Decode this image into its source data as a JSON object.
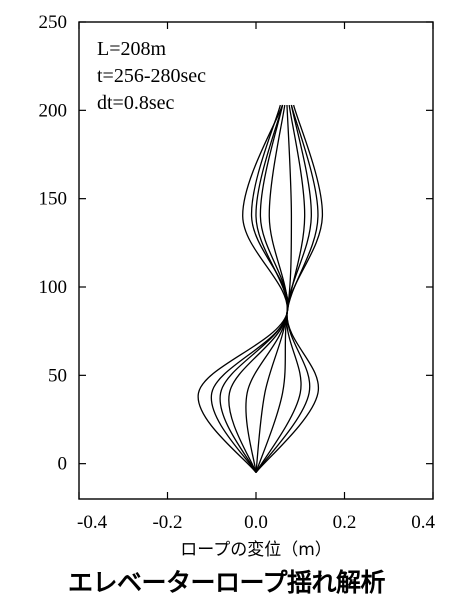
{
  "chart_data": {
    "type": "line",
    "annotations": [
      "L=208m",
      "t=256-280sec",
      "dt=0.8sec"
    ],
    "xlabel": "ロープの変位（m）",
    "ylabel": "",
    "xlim": [
      -0.4,
      0.4
    ],
    "ylim": [
      -20,
      250
    ],
    "x_ticks": [
      "-0.4",
      "-0.2",
      "0.0",
      "0.2",
      "0.4"
    ],
    "y_ticks": [
      "0",
      "50",
      "100",
      "150",
      "200",
      "250"
    ],
    "series": [
      {
        "y": [
          -5,
          40,
          85,
          140,
          203
        ],
        "x": [
          0.0,
          -0.06,
          0.07,
          0.0,
          0.06
        ]
      },
      {
        "y": [
          -5,
          40,
          85,
          140,
          203
        ],
        "x": [
          0.0,
          -0.02,
          0.07,
          0.03,
          0.065
        ]
      },
      {
        "y": [
          -5,
          40,
          85,
          140,
          203
        ],
        "x": [
          0.0,
          0.02,
          0.07,
          0.08,
          0.07
        ]
      },
      {
        "y": [
          -5,
          40,
          85,
          140,
          203
        ],
        "x": [
          0.0,
          0.06,
          0.07,
          0.11,
          0.075
        ]
      },
      {
        "y": [
          -5,
          40,
          85,
          140,
          203
        ],
        "x": [
          0.0,
          0.1,
          0.07,
          0.14,
          0.08
        ]
      },
      {
        "y": [
          -5,
          40,
          85,
          140,
          203
        ],
        "x": [
          0.0,
          0.14,
          0.07,
          0.15,
          0.085
        ]
      },
      {
        "y": [
          -5,
          40,
          85,
          140,
          203
        ],
        "x": [
          0.0,
          -0.1,
          0.07,
          -0.03,
          0.06
        ]
      },
      {
        "y": [
          -5,
          40,
          85,
          140,
          203
        ],
        "x": [
          0.0,
          -0.13,
          0.07,
          -0.01,
          0.055
        ]
      },
      {
        "y": [
          -5,
          40,
          85,
          140,
          203
        ],
        "x": [
          0.0,
          0.12,
          0.07,
          0.125,
          0.08
        ]
      },
      {
        "y": [
          -5,
          40,
          85,
          140,
          203
        ],
        "x": [
          0.0,
          -0.08,
          0.07,
          0.01,
          0.06
        ]
      }
    ],
    "grid": false,
    "caption": "エレベーターロープ揺れ解析"
  }
}
